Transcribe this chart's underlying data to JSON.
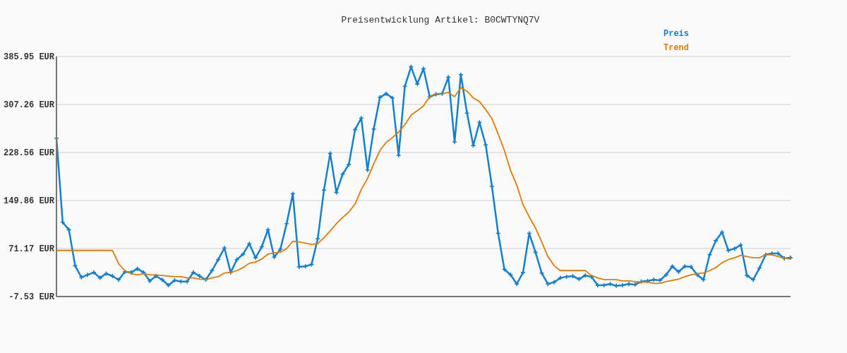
{
  "chart_data": {
    "type": "line",
    "title": "Preisentwicklung Artikel: B0CWTYNQ7V",
    "categories": [
      null,
      null,
      null,
      null,
      null,
      null,
      null,
      null,
      null,
      null,
      null,
      null,
      null,
      null,
      null,
      null,
      null,
      null,
      null,
      null,
      null,
      null,
      null,
      null,
      null,
      null,
      null,
      null,
      null,
      null,
      null,
      null,
      null,
      null,
      null,
      null,
      null,
      null,
      null,
      null,
      null,
      null,
      null,
      null,
      null,
      null,
      null,
      null,
      null,
      null,
      null,
      null,
      null,
      null,
      null,
      null,
      null,
      null,
      null,
      null,
      null,
      null,
      null,
      null,
      null,
      null,
      null,
      null,
      null,
      null,
      null,
      null,
      null,
      null,
      null,
      null,
      null,
      null,
      null,
      null,
      null,
      null,
      null,
      null,
      null,
      null,
      null,
      null,
      null,
      null,
      null,
      null,
      null,
      null,
      null,
      null,
      null,
      null,
      null,
      null,
      null,
      null,
      null,
      null,
      null,
      null,
      null,
      null,
      null,
      null,
      null,
      null,
      null,
      null,
      null,
      null,
      null,
      null,
      null
    ],
    "series": [
      {
        "name": "Preis",
        "color": "#1380d0",
        "values": [
          252,
          114,
          102,
          43,
          24,
          28,
          32,
          23,
          30,
          26,
          20,
          33,
          32,
          38,
          32,
          18,
          26,
          20,
          11,
          19,
          17,
          17,
          32,
          26,
          20,
          35,
          53,
          72,
          32,
          53,
          62,
          79,
          56,
          74,
          102,
          57,
          70,
          112,
          161,
          41,
          42,
          45,
          87,
          167,
          227,
          163,
          193,
          209,
          266,
          285,
          200,
          267,
          319,
          325,
          318,
          224,
          337,
          369,
          341,
          366,
          320,
          324,
          325,
          352,
          246,
          356,
          293,
          240,
          278,
          241,
          173,
          96,
          37,
          28,
          13,
          32,
          96,
          65,
          31,
          13,
          16,
          23,
          25,
          26,
          21,
          27,
          25,
          11,
          11,
          13,
          10,
          11,
          13,
          12,
          17,
          18,
          20,
          19,
          28,
          42,
          33,
          42,
          41,
          28,
          20,
          61,
          84,
          98,
          68,
          71,
          77,
          27,
          20,
          39,
          61,
          63,
          63,
          55,
          56
        ]
      },
      {
        "name": "Trend",
        "color": "#e07c00",
        "marker": "none",
        "values": [
          68,
          68,
          68,
          68,
          68,
          68,
          68,
          68,
          68,
          68,
          46,
          35,
          30,
          28,
          30,
          28,
          28,
          27,
          26,
          25,
          25,
          23,
          23,
          21,
          20,
          23,
          25,
          31,
          32,
          35,
          40,
          47,
          49,
          54,
          62,
          64,
          65,
          71,
          83,
          82,
          80,
          78,
          79,
          89,
          100,
          112,
          122,
          131,
          144,
          168,
          186,
          210,
          232,
          245,
          253,
          262,
          274,
          290,
          297,
          305,
          320,
          325,
          325,
          327,
          320,
          335,
          329,
          318,
          312,
          299,
          284,
          259,
          232,
          199,
          175,
          143,
          123,
          105,
          82,
          58,
          43,
          35,
          35,
          35,
          35,
          35,
          27,
          23,
          20,
          20,
          20,
          18,
          18,
          17,
          16,
          16,
          14,
          14,
          17,
          19,
          21,
          25,
          28,
          30,
          31,
          35,
          40,
          48,
          53,
          56,
          60,
          58,
          56,
          56,
          61,
          61,
          58,
          55,
          54
        ]
      }
    ],
    "ylim": [
      -7.53,
      385.95
    ],
    "yticks": [
      {
        "value": -7.53,
        "label": "-7.53 EUR"
      },
      {
        "value": 71.17,
        "label": "71.17 EUR"
      },
      {
        "value": 149.86,
        "label": "149.86 EUR"
      },
      {
        "value": 228.56,
        "label": "228.56 EUR"
      },
      {
        "value": 307.26,
        "label": "307.26 EUR"
      },
      {
        "value": 385.95,
        "label": "385.95 EUR"
      }
    ],
    "grid": "y",
    "legend": "top right",
    "marker": "cross",
    "line_style": "solid"
  }
}
